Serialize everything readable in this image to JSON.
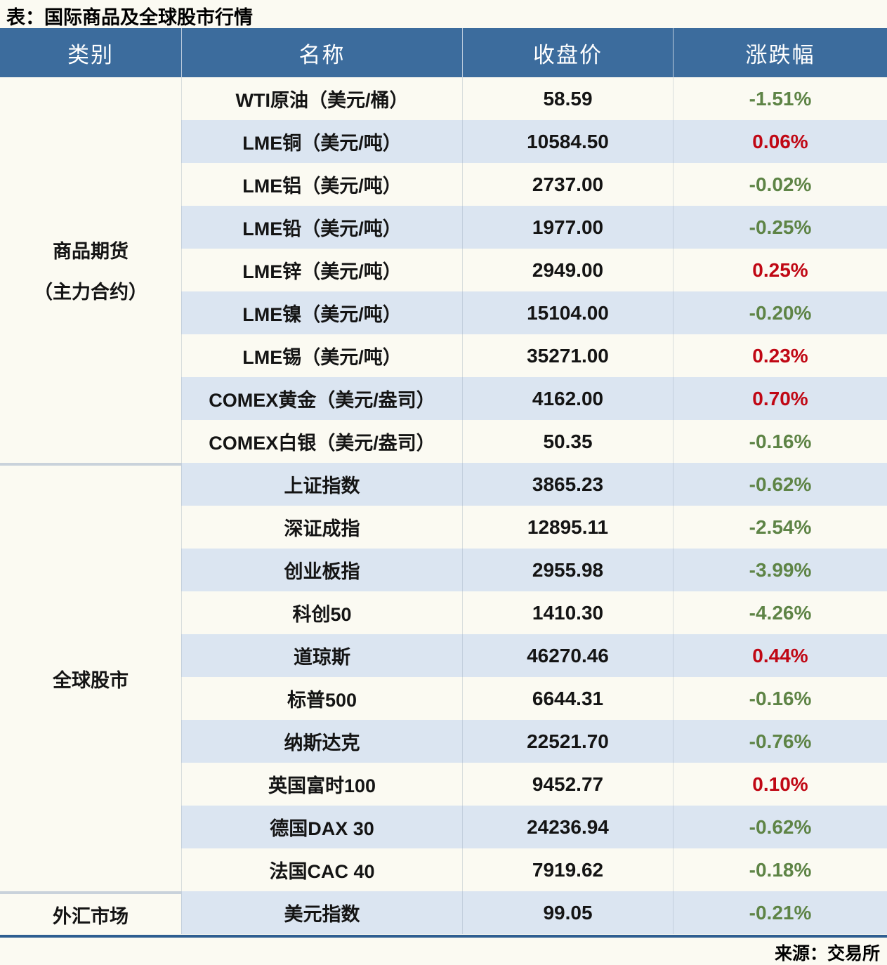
{
  "title": "表：国际商品及全球股市行情",
  "source": "来源：交易所",
  "colors": {
    "header_bg": "#3C6C9D",
    "row_alt_bg": "#DBE5F1",
    "page_bg": "#FBFAF2",
    "up_red": "#C00714",
    "down_green": "#5E8446",
    "bottom_border": "#2E5E91"
  },
  "table": {
    "headers": [
      "类别",
      "名称",
      "收盘价",
      "涨跌幅"
    ],
    "groups": [
      {
        "category_lines": [
          "商品期货",
          "（主力合约）"
        ],
        "rows": [
          {
            "name": "WTI原油（美元/桶）",
            "close": "58.59",
            "change": "-1.51%",
            "direction": "down"
          },
          {
            "name": "LME铜（美元/吨）",
            "close": "10584.50",
            "change": "0.06%",
            "direction": "up"
          },
          {
            "name": "LME铝（美元/吨）",
            "close": "2737.00",
            "change": "-0.02%",
            "direction": "down"
          },
          {
            "name": "LME铅（美元/吨）",
            "close": "1977.00",
            "change": "-0.25%",
            "direction": "down"
          },
          {
            "name": "LME锌（美元/吨）",
            "close": "2949.00",
            "change": "0.25%",
            "direction": "up"
          },
          {
            "name": "LME镍（美元/吨）",
            "close": "15104.00",
            "change": "-0.20%",
            "direction": "down"
          },
          {
            "name": "LME锡（美元/吨）",
            "close": "35271.00",
            "change": "0.23%",
            "direction": "up"
          },
          {
            "name": "COMEX黄金（美元/盎司）",
            "close": "4162.00",
            "change": "0.70%",
            "direction": "up"
          },
          {
            "name": "COMEX白银（美元/盎司）",
            "close": "50.35",
            "change": "-0.16%",
            "direction": "down"
          }
        ]
      },
      {
        "category_lines": [
          "全球股市"
        ],
        "rows": [
          {
            "name": "上证指数",
            "close": "3865.23",
            "change": "-0.62%",
            "direction": "down"
          },
          {
            "name": "深证成指",
            "close": "12895.11",
            "change": "-2.54%",
            "direction": "down"
          },
          {
            "name": "创业板指",
            "close": "2955.98",
            "change": "-3.99%",
            "direction": "down"
          },
          {
            "name": "科创50",
            "close": "1410.30",
            "change": "-4.26%",
            "direction": "down"
          },
          {
            "name": "道琼斯",
            "close": "46270.46",
            "change": "0.44%",
            "direction": "up"
          },
          {
            "name": "标普500",
            "close": "6644.31",
            "change": "-0.16%",
            "direction": "down"
          },
          {
            "name": "纳斯达克",
            "close": "22521.70",
            "change": "-0.76%",
            "direction": "down"
          },
          {
            "name": "英国富时100",
            "close": "9452.77",
            "change": "0.10%",
            "direction": "up"
          },
          {
            "name": "德国DAX 30",
            "close": "24236.94",
            "change": "-0.62%",
            "direction": "down"
          },
          {
            "name": "法国CAC 40",
            "close": "7919.62",
            "change": "-0.18%",
            "direction": "down"
          }
        ]
      },
      {
        "category_lines": [
          "外汇市场"
        ],
        "rows": [
          {
            "name": "美元指数",
            "close": "99.05",
            "change": "-0.21%",
            "direction": "down"
          }
        ]
      }
    ]
  },
  "chart_data": {
    "type": "table",
    "title": "表：国际商品及全球股市行情",
    "columns": [
      "类别",
      "名称",
      "收盘价",
      "涨跌幅"
    ],
    "rows": [
      [
        "商品期货（主力合约）",
        "WTI原油（美元/桶）",
        "58.59",
        "-1.51%"
      ],
      [
        "商品期货（主力合约）",
        "LME铜（美元/吨）",
        "10584.50",
        "0.06%"
      ],
      [
        "商品期货（主力合约）",
        "LME铝（美元/吨）",
        "2737.00",
        "-0.02%"
      ],
      [
        "商品期货（主力合约）",
        "LME铅（美元/吨）",
        "1977.00",
        "-0.25%"
      ],
      [
        "商品期货（主力合约）",
        "LME锌（美元/吨）",
        "2949.00",
        "0.25%"
      ],
      [
        "商品期货（主力合约）",
        "LME镍（美元/吨）",
        "15104.00",
        "-0.20%"
      ],
      [
        "商品期货（主力合约）",
        "LME锡（美元/吨）",
        "35271.00",
        "0.23%"
      ],
      [
        "商品期货（主力合约）",
        "COMEX黄金（美元/盎司）",
        "4162.00",
        "0.70%"
      ],
      [
        "商品期货（主力合约）",
        "COMEX白银（美元/盎司）",
        "50.35",
        "-0.16%"
      ],
      [
        "全球股市",
        "上证指数",
        "3865.23",
        "-0.62%"
      ],
      [
        "全球股市",
        "深证成指",
        "12895.11",
        "-2.54%"
      ],
      [
        "全球股市",
        "创业板指",
        "2955.98",
        "-3.99%"
      ],
      [
        "全球股市",
        "科创50",
        "1410.30",
        "-4.26%"
      ],
      [
        "全球股市",
        "道琼斯",
        "46270.46",
        "0.44%"
      ],
      [
        "全球股市",
        "标普500",
        "6644.31",
        "-0.16%"
      ],
      [
        "全球股市",
        "纳斯达克",
        "22521.70",
        "-0.76%"
      ],
      [
        "全球股市",
        "英国富时100",
        "9452.77",
        "0.10%"
      ],
      [
        "全球股市",
        "德国DAX 30",
        "24236.94",
        "-0.62%"
      ],
      [
        "全球股市",
        "法国CAC 40",
        "7919.62",
        "-0.18%"
      ],
      [
        "外汇市场",
        "美元指数",
        "99.05",
        "-0.21%"
      ]
    ]
  }
}
